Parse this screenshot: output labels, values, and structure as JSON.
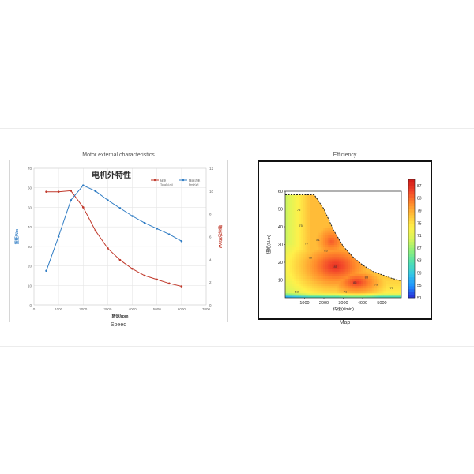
{
  "left_panel": {
    "caption_top": "Motor external characteristics",
    "caption_bottom": "Speed"
  },
  "right_panel": {
    "caption_top": "Efficiency",
    "caption_bottom": "Map"
  },
  "chart_data": [
    {
      "type": "line",
      "title": "电机外特性",
      "xlabel": "转速/rpm",
      "ylabel_left": "扭矩/Nm",
      "ylabel_right": "输出功率/kW",
      "xlim": [
        0,
        7000
      ],
      "ylim_left": [
        0,
        70
      ],
      "ylim_right": [
        0,
        12
      ],
      "x_ticks": [
        "0",
        "1000",
        "2000",
        "3000",
        "4000",
        "5000",
        "6000",
        "7000"
      ],
      "y_ticks_left": [
        "0",
        "10",
        "20",
        "30",
        "40",
        "50",
        "60",
        "70"
      ],
      "y_ticks_right": [
        "0",
        "2",
        "4",
        "6",
        "8",
        "10",
        "12"
      ],
      "grid": true,
      "legend_position": "top-right",
      "colors": {
        "torque": "#c0392b",
        "power": "#2f7cc4"
      },
      "series": [
        {
          "name": "扭矩 Torq[N.m]",
          "axis": "left",
          "x": [
            500,
            1000,
            1500,
            2000,
            2500,
            3000,
            3500,
            4000,
            4500,
            5000,
            5500,
            6000
          ],
          "values": [
            58,
            58,
            58.5,
            50,
            38,
            29,
            23,
            18.5,
            15,
            13,
            11,
            9.5
          ]
        },
        {
          "name": "输出功率 Pm[Kw]",
          "axis": "right",
          "x": [
            500,
            1000,
            1500,
            2000,
            2500,
            3000,
            3500,
            4000,
            4500,
            5000,
            5500,
            6000
          ],
          "values": [
            3,
            6,
            9.2,
            10.5,
            10,
            9.2,
            8.5,
            7.8,
            7.2,
            6.7,
            6.2,
            5.6
          ]
        }
      ]
    },
    {
      "type": "heatmap",
      "title": "",
      "xlabel": "转速(r/min)",
      "ylabel": "扭矩(N.m)",
      "xlim": [
        0,
        6000
      ],
      "ylim": [
        0,
        60
      ],
      "x_ticks": [
        "1000",
        "2000",
        "3000",
        "4000",
        "5000"
      ],
      "y_ticks": [
        "10",
        "20",
        "30",
        "40",
        "50",
        "60"
      ],
      "colorbar_ticks": [
        "51",
        "55",
        "59",
        "63",
        "67",
        "71",
        "75",
        "79",
        "83",
        "87"
      ],
      "colorbar_range": [
        51,
        89
      ],
      "colormap": [
        "#2b2bd6",
        "#1e90ff",
        "#35c8e6",
        "#4fe0b0",
        "#8ff07a",
        "#d9f55a",
        "#fff04a",
        "#ffc23a",
        "#ff8a2b",
        "#f2452a",
        "#d01818"
      ],
      "boundary_torque_curve": {
        "x": [
          0,
          1500,
          2000,
          2500,
          3000,
          3500,
          4000,
          4500,
          5000,
          5500,
          6000
        ],
        "values": [
          58,
          58,
          50,
          38,
          29,
          23,
          18.5,
          15,
          13,
          11,
          9.5
        ]
      },
      "efficiency_peaks": [
        {
          "x": 2600,
          "y": 18,
          "value": 87,
          "spread_x": 1100,
          "spread_y": 8
        },
        {
          "x": 3700,
          "y": 9,
          "value": 86,
          "spread_x": 900,
          "spread_y": 5
        },
        {
          "x": 2400,
          "y": 32,
          "value": 84,
          "spread_x": 800,
          "spread_y": 9
        }
      ],
      "contour_labels": [
        {
          "x": 700,
          "y": 49,
          "text": "75"
        },
        {
          "x": 800,
          "y": 40,
          "text": "75"
        },
        {
          "x": 1100,
          "y": 30,
          "text": "77"
        },
        {
          "x": 1300,
          "y": 22,
          "text": "79"
        },
        {
          "x": 1700,
          "y": 32,
          "text": "81"
        },
        {
          "x": 2100,
          "y": 26,
          "text": "83"
        },
        {
          "x": 2600,
          "y": 17,
          "text": "85"
        },
        {
          "x": 3600,
          "y": 8,
          "text": "86"
        },
        {
          "x": 4200,
          "y": 11,
          "text": "83"
        },
        {
          "x": 4700,
          "y": 7,
          "text": "79"
        },
        {
          "x": 5500,
          "y": 5,
          "text": "75"
        },
        {
          "x": 3100,
          "y": 3,
          "text": "71"
        },
        {
          "x": 600,
          "y": 3,
          "text": "63"
        }
      ]
    }
  ]
}
